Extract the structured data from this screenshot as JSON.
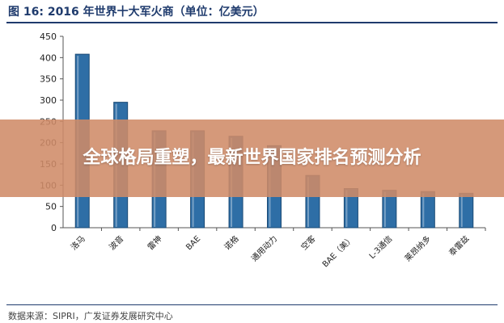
{
  "header": {
    "title": "图 16:  2016 年世界十大军火商（单位：亿美元）"
  },
  "banner": {
    "text": "全球格局重塑，最新世界国家排名预测分析"
  },
  "footer": {
    "source": "数据来源：SIPRI，广发证券发展研究中心"
  },
  "chart_data": {
    "type": "bar",
    "categories": [
      "洛马",
      "波音",
      "雷神",
      "BAE",
      "诺格",
      "通用动力",
      "空客",
      "BAE（美）",
      "L-3通信",
      "莱昂纳多",
      "泰雷兹"
    ],
    "values": [
      408,
      295,
      228,
      228,
      215,
      193,
      123,
      92,
      88,
      85,
      81
    ],
    "title": "图 16:  2016 年世界十大军火商（单位：亿美元）",
    "xlabel": "",
    "ylabel": "",
    "ylim": [
      0,
      450
    ],
    "yticks": [
      0,
      50,
      100,
      150,
      200,
      250,
      300,
      350,
      400,
      450
    ],
    "grid": false,
    "bar_color": "#2e6ea6",
    "bar_edge_color": "#1b4a75"
  }
}
